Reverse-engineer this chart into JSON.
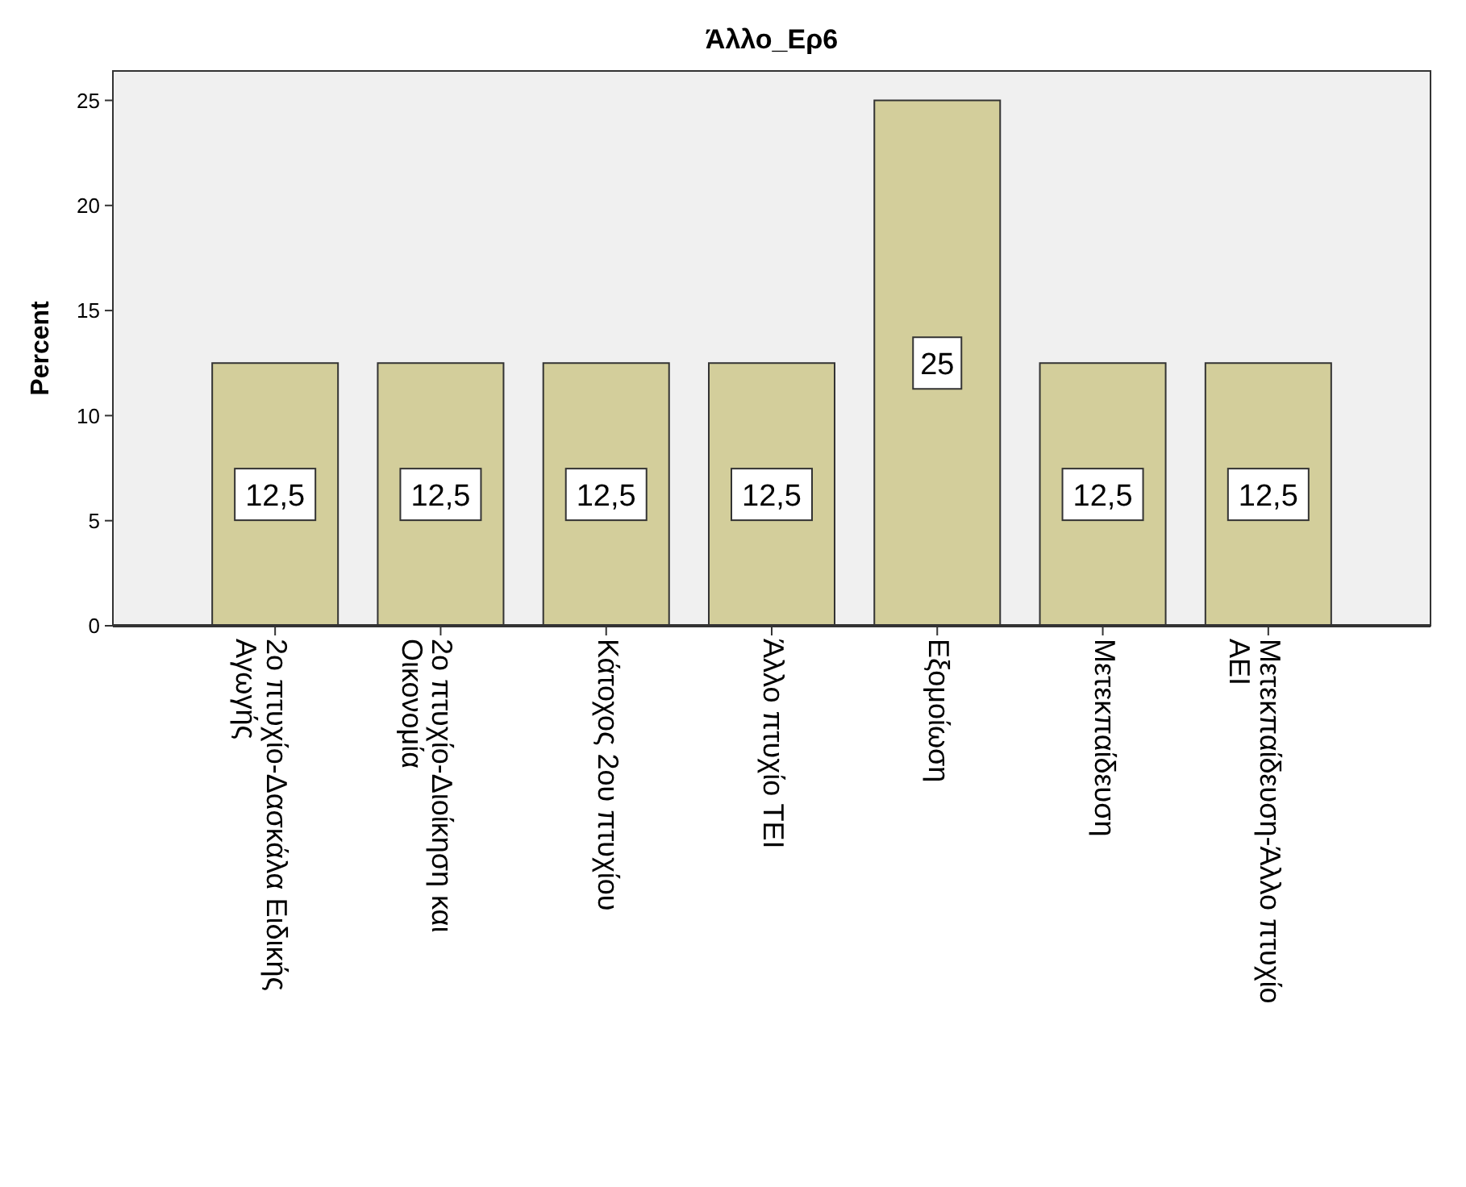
{
  "chart_data": {
    "type": "bar",
    "title": "Άλλο_Ερ6",
    "ylabel": "Percent",
    "categories": [
      "2ο πτυχίο-Δασκάλα Ειδικής Αγωγής",
      "2ο πτυχίο-Διοίκηση και Οικονομία",
      "Κάτοχος 2ου πτυχίου",
      "Άλλο πτυχίο ΤΕΙ",
      "Εξομοίωση",
      "Μετεκπαίδευση",
      "Μετεκπαίδευση-Άλλο πτυχίο ΑΕΙ"
    ],
    "values": [
      12.5,
      12.5,
      12.5,
      12.5,
      25,
      12.5,
      12.5
    ],
    "value_labels": [
      "12,5",
      "12,5",
      "12,5",
      "12,5",
      "25",
      "12,5",
      "12,5"
    ],
    "color": "#d3ce9b",
    "ylim": [
      0,
      26.4
    ],
    "yticks": [
      0,
      5,
      10,
      15,
      20,
      25
    ],
    "grid": false
  }
}
